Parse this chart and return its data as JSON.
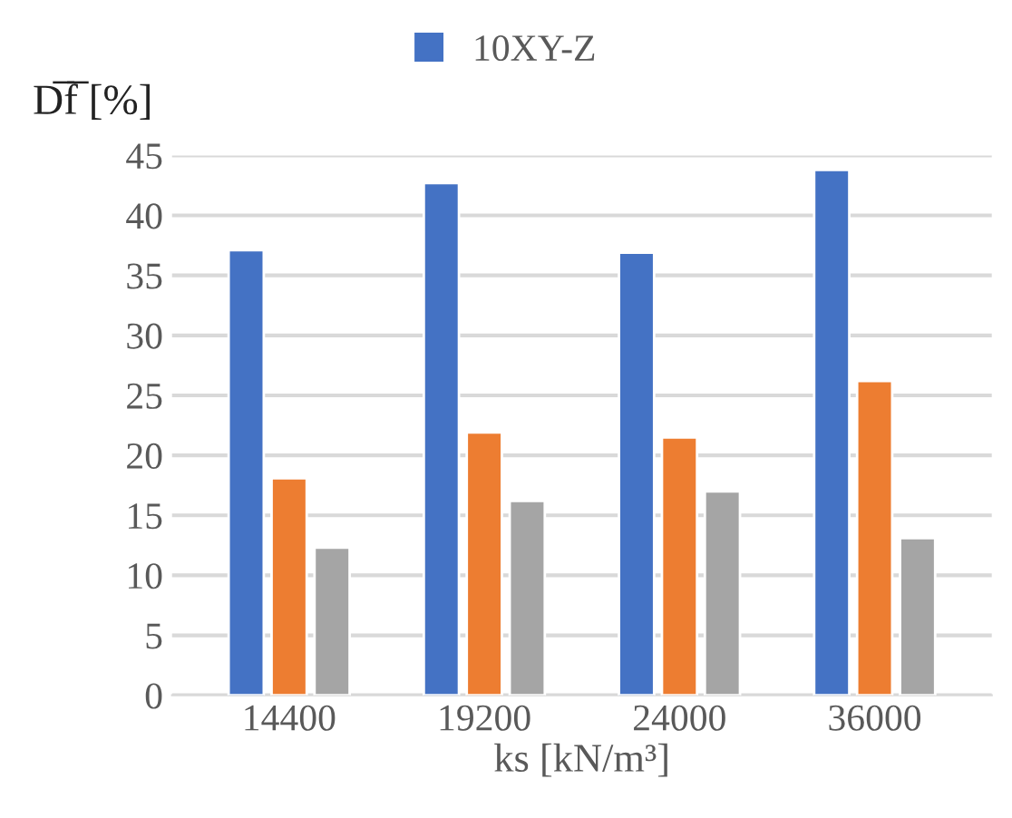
{
  "chart_data": {
    "type": "bar",
    "categories": [
      "14400",
      "19200",
      "24000",
      "36000"
    ],
    "series": [
      {
        "name": "10XY-Z",
        "color": "#4472c4",
        "values": [
          37.1,
          42.7,
          36.9,
          43.8
        ]
      },
      {
        "color": "#ed7d31",
        "values": [
          18.1,
          21.9,
          21.5,
          26.2
        ]
      },
      {
        "color": "#a5a5a5",
        "values": [
          12.3,
          16.2,
          17.0,
          13.1
        ]
      }
    ],
    "xlabel": "ks [kN/m³]",
    "ylabel": "D̅f̅ [%]",
    "ylim": [
      0,
      45
    ],
    "yticks": [
      0,
      5,
      10,
      15,
      20,
      25,
      30,
      35,
      40,
      45
    ],
    "grid": "y",
    "legend": "top"
  }
}
